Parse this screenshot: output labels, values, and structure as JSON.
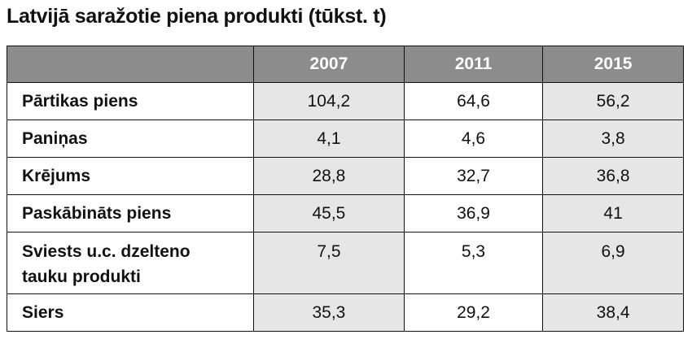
{
  "title": "Latvijā saražotie piena produkti (tūkst. t)",
  "table": {
    "columns": [
      "2007",
      "2011",
      "2015"
    ],
    "rows": [
      {
        "label": "Pārtikas piens",
        "values": [
          "104,2",
          "64,6",
          "56,2"
        ]
      },
      {
        "label": "Paniņas",
        "values": [
          "4,1",
          "4,6",
          "3,8"
        ]
      },
      {
        "label": "Krējums",
        "values": [
          "28,8",
          "32,7",
          "36,8"
        ]
      },
      {
        "label": "Paskābināts piens",
        "values": [
          "45,5",
          "36,9",
          "41"
        ]
      },
      {
        "label": "Sviests u.c. dzelteno tauku produkti",
        "values": [
          "7,5",
          "5,3",
          "6,9"
        ]
      },
      {
        "label": "Siers",
        "values": [
          "35,3",
          "29,2",
          "38,4"
        ]
      }
    ]
  }
}
